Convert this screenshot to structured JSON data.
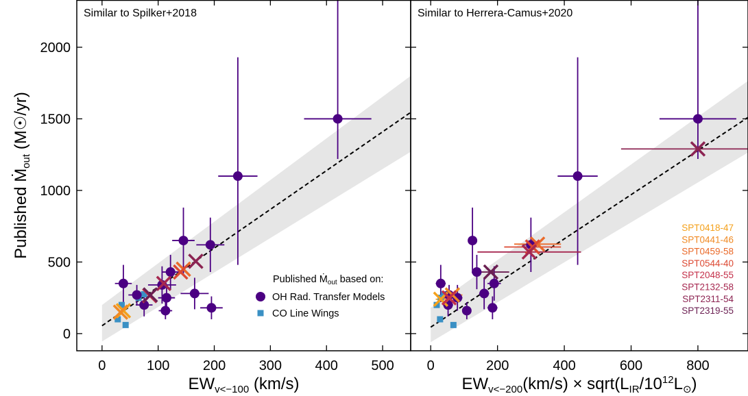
{
  "chart_data": {
    "type": "scatter",
    "ylabel": "Published Ṁout (M☉/yr)",
    "ylim": [
      -120,
      2330
    ],
    "yticks": [
      0,
      500,
      1000,
      1500,
      2000
    ],
    "legend": {
      "title": "Published Ṁout based on:",
      "entries": [
        {
          "label": "OH Rad. Transfer Models",
          "marker": "circle",
          "color": "#4b0082"
        },
        {
          "label": "CO Line Wings",
          "marker": "square",
          "color": "#3a90c4"
        }
      ],
      "placement": "lower-right"
    },
    "sources": {
      "labels": [
        "SPT0418-47",
        "SPT0441-46",
        "SPT0459-58",
        "SPT0544-40",
        "SPT2048-55",
        "SPT2132-58",
        "SPT2311-54",
        "SPT2319-55"
      ],
      "colors": [
        "#f4a11c",
        "#f08a24",
        "#ea6a2a",
        "#dc4832",
        "#c4304a",
        "#a62850",
        "#8c2452",
        "#6b1f52"
      ]
    },
    "panels": [
      {
        "title": "Similar to Spilker+2018",
        "xlabel": {
          "main": "EW",
          "sub": "v<−100",
          "rest": " (km/s)"
        },
        "xlim": [
          -45,
          550
        ],
        "xticks": [
          0,
          100,
          200,
          300,
          400,
          500
        ],
        "fit": {
          "x": [
            0,
            550
          ],
          "y": [
            55,
            1545
          ]
        },
        "band": {
          "x": [
            0,
            550
          ],
          "lower": [
            -55,
            1270
          ],
          "upper": [
            200,
            1800
          ]
        },
        "oh_points": [
          {
            "x": 420,
            "y": 1500,
            "xerr": [
              60,
              60
            ],
            "yerr": [
              280,
              830
            ]
          },
          {
            "x": 242,
            "y": 1100,
            "xerr": [
              35,
              35
            ],
            "yerr": [
              620,
              830
            ]
          },
          {
            "x": 145,
            "y": 650,
            "xerr": [
              20,
              20
            ],
            "yerr": [
              230,
              230
            ]
          },
          {
            "x": 193,
            "y": 620,
            "xerr": [
              25,
              25
            ],
            "yerr": [
              190,
              190
            ]
          },
          {
            "x": 122,
            "y": 430,
            "xerr": [
              15,
              15
            ],
            "yerr": [
              120,
              120
            ]
          },
          {
            "x": 38,
            "y": 350,
            "xerr": [
              15,
              15
            ],
            "yerr": [
              130,
              130
            ]
          },
          {
            "x": 107,
            "y": 340,
            "xerr": [
              25,
              25
            ],
            "yerr": [
              130,
              130
            ]
          },
          {
            "x": 62,
            "y": 270,
            "xerr": [
              15,
              15
            ],
            "yerr": [
              70,
              70
            ]
          },
          {
            "x": 165,
            "y": 280,
            "xerr": [
              25,
              25
            ],
            "yerr": [
              110,
              110
            ]
          },
          {
            "x": 115,
            "y": 250,
            "xerr": [
              15,
              15
            ],
            "yerr": [
              90,
              90
            ]
          },
          {
            "x": 75,
            "y": 200,
            "xerr": [
              15,
              15
            ],
            "yerr": [
              80,
              80
            ]
          },
          {
            "x": 113,
            "y": 160,
            "xerr": [
              12,
              12
            ],
            "yerr": [
              60,
              60
            ]
          },
          {
            "x": 195,
            "y": 180,
            "xerr": [
              20,
              20
            ],
            "yerr": [
              80,
              80
            ]
          }
        ],
        "co_points": [
          {
            "x": 35,
            "y": 200
          },
          {
            "x": 28,
            "y": 100
          },
          {
            "x": 42,
            "y": 60
          },
          {
            "x": 75,
            "y": 275
          },
          {
            "x": 65,
            "y": 250
          }
        ],
        "crosses": [
          {
            "x": 38,
            "y": 160,
            "source": "SPT0418-47"
          },
          {
            "x": 33,
            "y": 150,
            "source": "SPT0441-46"
          },
          {
            "x": 145,
            "y": 450,
            "source": "SPT0459-58"
          },
          {
            "x": 140,
            "y": 430,
            "source": "SPT0544-40"
          },
          {
            "x": 85,
            "y": 265,
            "source": "SPT2048-55"
          },
          {
            "x": 110,
            "y": 350,
            "source": "SPT2132-58"
          },
          {
            "x": 167,
            "y": 505,
            "source": "SPT2311-54"
          },
          {
            "x": 86,
            "y": 270,
            "source": "SPT2319-55"
          }
        ]
      },
      {
        "title": "Similar to Herrera-Camus+2020",
        "xlabel": {
          "main": "EW",
          "sub": "v<−200",
          "mid": "(km/s) × sqrt(L",
          "sub2": "IR",
          "mid2": "/10",
          "sup": "12",
          "mid3": "L",
          "sub3": "⊙",
          "end": ")"
        },
        "xlim": [
          -60,
          950
        ],
        "xticks": [
          0,
          200,
          400,
          600,
          800
        ],
        "fit": {
          "x": [
            0,
            950
          ],
          "y": [
            45,
            1510
          ]
        },
        "band": {
          "x": [
            0,
            950
          ],
          "lower": [
            -60,
            1265
          ],
          "upper": [
            180,
            1765
          ]
        },
        "oh_points": [
          {
            "x": 800,
            "y": 1500,
            "xerr": [
              115,
              115
            ],
            "yerr": [
              280,
              830
            ]
          },
          {
            "x": 440,
            "y": 1100,
            "xerr": [
              60,
              60
            ],
            "yerr": [
              620,
              830
            ]
          },
          {
            "x": 125,
            "y": 650,
            "xerr": [
              10,
              10
            ],
            "yerr": [
              230,
              230
            ]
          },
          {
            "x": 300,
            "y": 620,
            "xerr": [
              25,
              25
            ],
            "yerr": [
              190,
              190
            ]
          },
          {
            "x": 138,
            "y": 430,
            "xerr": [
              15,
              15
            ],
            "yerr": [
              120,
              120
            ]
          },
          {
            "x": 30,
            "y": 350,
            "xerr": [
              15,
              15
            ],
            "yerr": [
              130,
              130
            ]
          },
          {
            "x": 190,
            "y": 350,
            "xerr": [
              20,
              20
            ],
            "yerr": [
              120,
              120
            ]
          },
          {
            "x": 55,
            "y": 270,
            "xerr": [
              20,
              20
            ],
            "yerr": [
              70,
              70
            ]
          },
          {
            "x": 160,
            "y": 280,
            "xerr": [
              15,
              15
            ],
            "yerr": [
              110,
              110
            ]
          },
          {
            "x": 80,
            "y": 250,
            "xerr": [
              15,
              15
            ],
            "yerr": [
              90,
              90
            ]
          },
          {
            "x": 52,
            "y": 200,
            "xerr": [
              15,
              15
            ],
            "yerr": [
              80,
              80
            ]
          },
          {
            "x": 108,
            "y": 160,
            "xerr": [
              10,
              10
            ],
            "yerr": [
              60,
              60
            ]
          },
          {
            "x": 185,
            "y": 180,
            "xerr": [
              15,
              15
            ],
            "yerr": [
              80,
              80
            ]
          }
        ],
        "co_points": [
          {
            "x": 18,
            "y": 200
          },
          {
            "x": 28,
            "y": 100
          },
          {
            "x": 68,
            "y": 60
          },
          {
            "x": 40,
            "y": 275
          },
          {
            "x": 30,
            "y": 250
          }
        ],
        "crosses": [
          {
            "x": 30,
            "y": 240,
            "source": "SPT0418-47",
            "xerr": [
              15,
              15
            ]
          },
          {
            "x": 65,
            "y": 270,
            "source": "SPT0441-46",
            "xerr": [
              30,
              30
            ]
          },
          {
            "x": 320,
            "y": 625,
            "source": "SPT0459-58",
            "xerr": [
              70,
              70
            ]
          },
          {
            "x": 305,
            "y": 605,
            "source": "SPT0544-40",
            "xerr": [
              85,
              85
            ]
          },
          {
            "x": 55,
            "y": 250,
            "source": "SPT2048-55",
            "xerr": [
              30,
              30
            ]
          },
          {
            "x": 295,
            "y": 570,
            "source": "SPT2132-58",
            "xerr": [
              155,
              155
            ]
          },
          {
            "x": 800,
            "y": 1290,
            "source": "SPT2311-54",
            "xerr": [
              230,
              230
            ]
          },
          {
            "x": 180,
            "y": 430,
            "source": "SPT2319-55",
            "xerr": [
              55,
              55
            ]
          }
        ]
      }
    ]
  }
}
